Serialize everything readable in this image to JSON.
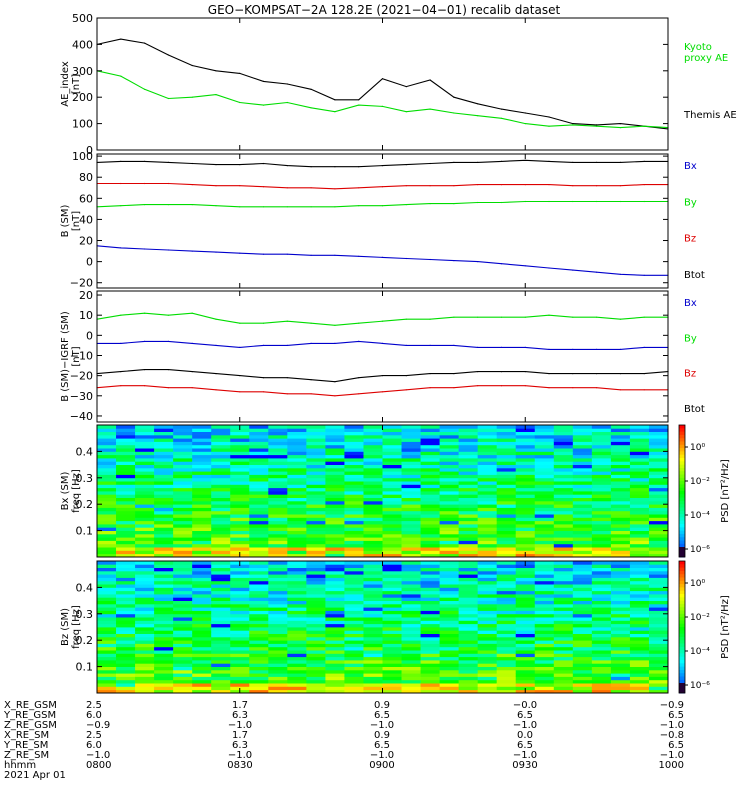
{
  "title": "GEO−KOMPSAT−2A 128.2E (2021−04−01) recalib dataset",
  "colors": {
    "black": "#000000",
    "green": "#00dd00",
    "red": "#dd0000",
    "blue": "#0000cc"
  },
  "chart_data": [
    {
      "type": "line",
      "ylabel": [
        "AE_index",
        "[nT]"
      ],
      "yticks": [
        "0",
        "100",
        "200",
        "300",
        "400",
        "500"
      ],
      "ylim": [
        0,
        500
      ],
      "x": [
        "0800",
        "0805",
        "0810",
        "0815",
        "0820",
        "0825",
        "0830",
        "0835",
        "0840",
        "0845",
        "0850",
        "0855",
        "0900",
        "0905",
        "0910",
        "0915",
        "0920",
        "0925",
        "0930",
        "0935",
        "0940",
        "0945",
        "0950",
        "0955",
        "1000"
      ],
      "series": [
        {
          "name": "Themis AE",
          "color": "#000000",
          "values": [
            400,
            420,
            405,
            360,
            320,
            300,
            290,
            260,
            250,
            230,
            190,
            190,
            270,
            240,
            265,
            200,
            175,
            155,
            140,
            125,
            100,
            95,
            100,
            90,
            80
          ]
        },
        {
          "name": "Kyoto proxy AE",
          "color": "#00dd00",
          "values": [
            300,
            280,
            230,
            195,
            200,
            210,
            180,
            170,
            180,
            160,
            145,
            170,
            165,
            145,
            155,
            140,
            130,
            120,
            100,
            90,
            95,
            90,
            85,
            90,
            85
          ]
        }
      ],
      "legend": [
        {
          "text": "Kyoto",
          "color": "#00dd00"
        },
        {
          "text": "proxy AE",
          "color": "#00dd00"
        },
        {
          "text": "Themis AE",
          "color": "#000000"
        }
      ]
    },
    {
      "type": "line",
      "ylabel": [
        "B (SM)",
        "[nT]"
      ],
      "yticks": [
        "−20",
        "0",
        "20",
        "40",
        "60",
        "80",
        "100"
      ],
      "ylim": [
        -25,
        102
      ],
      "x": [
        "0800",
        "0805",
        "0810",
        "0815",
        "0820",
        "0825",
        "0830",
        "0835",
        "0840",
        "0845",
        "0850",
        "0855",
        "0900",
        "0905",
        "0910",
        "0915",
        "0920",
        "0925",
        "0930",
        "0935",
        "0940",
        "0945",
        "0950",
        "0955",
        "1000"
      ],
      "series": [
        {
          "name": "Btot",
          "color": "#000000",
          "values": [
            94,
            95,
            95,
            94,
            93,
            92,
            92,
            93,
            91,
            90,
            90,
            90,
            91,
            92,
            93,
            94,
            94,
            95,
            96,
            95,
            94,
            94,
            94,
            95,
            95
          ]
        },
        {
          "name": "Bz",
          "color": "#dd0000",
          "values": [
            74,
            74,
            74,
            74,
            73,
            72,
            72,
            71,
            70,
            70,
            69,
            70,
            71,
            72,
            72,
            72,
            73,
            73,
            73,
            73,
            72,
            72,
            72,
            73,
            73
          ]
        },
        {
          "name": "By",
          "color": "#00dd00",
          "values": [
            52,
            53,
            54,
            54,
            54,
            53,
            52,
            52,
            52,
            52,
            52,
            53,
            53,
            54,
            55,
            55,
            56,
            56,
            57,
            57,
            57,
            57,
            57,
            57,
            57
          ]
        },
        {
          "name": "Bx",
          "color": "#0000cc",
          "values": [
            15,
            13,
            12,
            11,
            10,
            9,
            8,
            7,
            7,
            6,
            6,
            5,
            4,
            3,
            2,
            1,
            0,
            -2,
            -4,
            -6,
            -8,
            -10,
            -12,
            -13,
            -13
          ]
        }
      ],
      "legend": [
        {
          "text": "Bx",
          "color": "#0000cc"
        },
        {
          "text": "By",
          "color": "#00dd00"
        },
        {
          "text": "Bz",
          "color": "#dd0000"
        },
        {
          "text": "Btot",
          "color": "#000000"
        }
      ]
    },
    {
      "type": "line",
      "ylabel": [
        "B (SM)−IGRF (SM)",
        "[nT]"
      ],
      "yticks": [
        "−40",
        "−30",
        "−20",
        "−10",
        "0",
        "10",
        "20"
      ],
      "ylim": [
        -43,
        22
      ],
      "x": [
        "0800",
        "0805",
        "0810",
        "0815",
        "0820",
        "0825",
        "0830",
        "0835",
        "0840",
        "0845",
        "0850",
        "0855",
        "0900",
        "0905",
        "0910",
        "0915",
        "0920",
        "0925",
        "0930",
        "0935",
        "0940",
        "0945",
        "0950",
        "0955",
        "1000"
      ],
      "series": [
        {
          "name": "By",
          "color": "#00dd00",
          "values": [
            8,
            10,
            11,
            10,
            11,
            8,
            6,
            6,
            7,
            6,
            5,
            6,
            7,
            8,
            8,
            9,
            9,
            9,
            9,
            10,
            9,
            9,
            8,
            9,
            9
          ]
        },
        {
          "name": "Bx",
          "color": "#0000cc",
          "values": [
            -4,
            -4,
            -3,
            -3,
            -4,
            -5,
            -6,
            -5,
            -5,
            -4,
            -4,
            -3,
            -4,
            -5,
            -5,
            -5,
            -6,
            -6,
            -6,
            -7,
            -7,
            -7,
            -7,
            -6,
            -6
          ]
        },
        {
          "name": "Btot",
          "color": "#000000",
          "values": [
            -19,
            -18,
            -17,
            -17,
            -18,
            -19,
            -20,
            -21,
            -21,
            -22,
            -23,
            -21,
            -20,
            -20,
            -19,
            -19,
            -18,
            -18,
            -18,
            -19,
            -19,
            -19,
            -19,
            -19,
            -18
          ]
        },
        {
          "name": "Bz",
          "color": "#dd0000",
          "values": [
            -26,
            -25,
            -25,
            -26,
            -26,
            -27,
            -28,
            -28,
            -29,
            -29,
            -30,
            -29,
            -28,
            -27,
            -26,
            -26,
            -25,
            -25,
            -25,
            -26,
            -26,
            -26,
            -27,
            -27,
            -27
          ]
        }
      ],
      "legend": [
        {
          "text": "Bx",
          "color": "#0000cc"
        },
        {
          "text": "By",
          "color": "#00dd00"
        },
        {
          "text": "Bz",
          "color": "#dd0000"
        },
        {
          "text": "Btot",
          "color": "#000000"
        }
      ]
    },
    {
      "type": "heatmap",
      "ylabel": [
        "Bx (SM)",
        "freq [Hz]"
      ],
      "yticks": [
        "0.1",
        "0.2",
        "0.3",
        "0.4"
      ],
      "ylim": [
        0,
        0.5
      ],
      "colorbar_label": "PSD [nT²/Hz]",
      "colorbar_ticks": [
        "10⁰",
        "10⁻²",
        "10⁻⁴",
        "10⁻⁶"
      ]
    },
    {
      "type": "heatmap",
      "ylabel": [
        "Bz (SM)",
        "freq [Hz]"
      ],
      "yticks": [
        "0.1",
        "0.2",
        "0.3",
        "0.4"
      ],
      "ylim": [
        0,
        0.5
      ],
      "colorbar_label": "PSD [nT²/Hz]",
      "colorbar_ticks": [
        "10⁰",
        "10⁻²",
        "10⁻⁴",
        "10⁻⁶"
      ]
    }
  ],
  "x_axis": {
    "row_labels": [
      "X_RE_GSM",
      "Y_RE_GSM",
      "Z_RE_GSM",
      "X_RE_SM",
      "Y_RE_SM",
      "Z_RE_SM",
      "hhmm",
      "2021 Apr 01"
    ],
    "columns": [
      [
        "2.5",
        "6.0",
        "−0.9",
        "2.5",
        "6.0",
        "−1.0",
        "0800"
      ],
      [
        "1.7",
        "6.3",
        "−1.0",
        "1.7",
        "6.3",
        "−1.0",
        "0830"
      ],
      [
        "0.9",
        "6.5",
        "−1.0",
        "0.9",
        "6.5",
        "−1.0",
        "0900"
      ],
      [
        "−0.0",
        "6.5",
        "−1.0",
        "0.0",
        "6.5",
        "−1.0",
        "0930"
      ],
      [
        "−0.9",
        "6.5",
        "−1.0",
        "−0.8",
        "6.5",
        "−1.0",
        "1000"
      ]
    ]
  }
}
